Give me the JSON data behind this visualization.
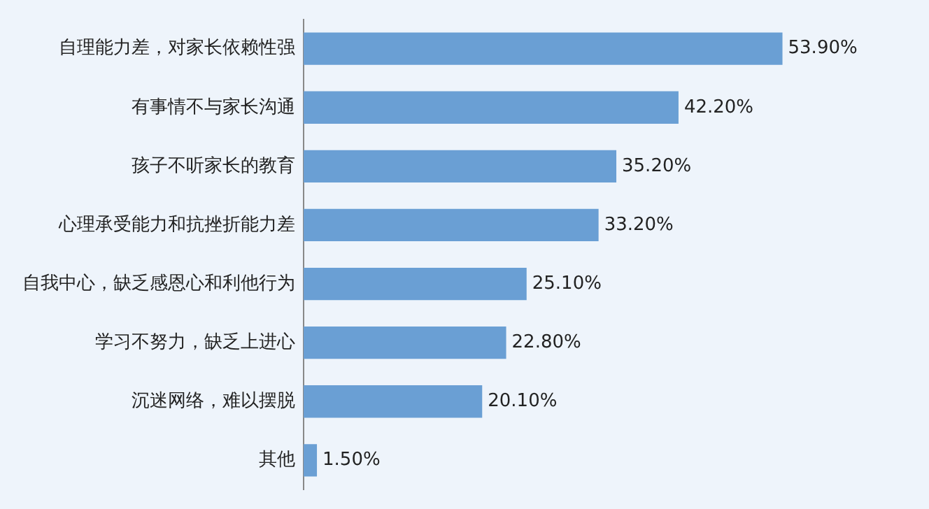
{
  "chart_data": {
    "type": "bar",
    "orientation": "horizontal",
    "categories": [
      "自理能力差，对家长依赖性强",
      "有事情不与家长沟通",
      "孩子不听家长的教育",
      "心理承受能力和抗挫折能力差",
      "自我中心，缺乏感恩心和利他行为",
      "学习不努力，缺乏上进心",
      "沉迷网络，难以摆脱",
      "其他"
    ],
    "values": [
      53.9,
      42.2,
      35.2,
      33.2,
      25.1,
      22.8,
      20.1,
      1.5
    ],
    "value_labels": [
      "53.90%",
      "42.20%",
      "35.20%",
      "33.20%",
      "25.10%",
      "22.80%",
      "20.10%",
      "1.50%"
    ],
    "color": "#6a9fd4"
  }
}
